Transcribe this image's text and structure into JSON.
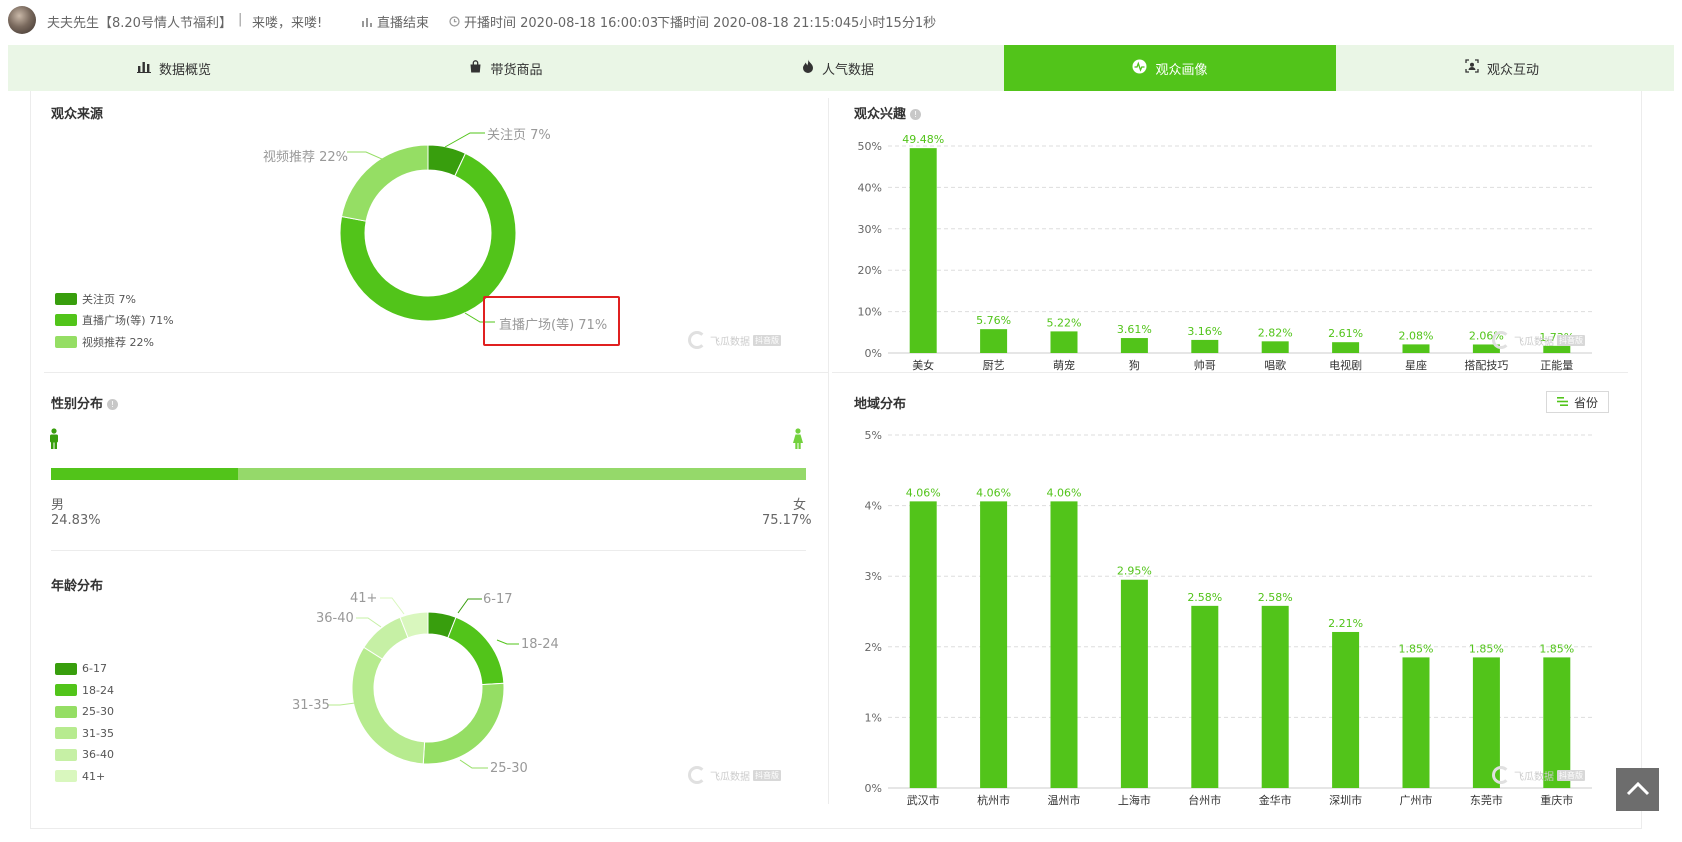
{
  "header": {
    "streamer": "夫夫先生【8.20号情人节福利】",
    "separator": "|",
    "slogan": "来喽，来喽!",
    "status": "直播结束",
    "start_time": "开播时间 2020-08-18 16:00:03",
    "end_time": "下播时间 2020-08-18 21:15:04",
    "duration": "5小时15分1秒"
  },
  "tabs": [
    {
      "label": "数据概览",
      "icon": "bar-chart-icon"
    },
    {
      "label": "带货商品",
      "icon": "shopping-bag-icon"
    },
    {
      "label": "人气数据",
      "icon": "flame-icon"
    },
    {
      "label": "观众画像",
      "icon": "activity-icon",
      "active": true
    },
    {
      "label": "观众互动",
      "icon": "scan-face-icon"
    }
  ],
  "audience_source": {
    "title": "观众来源",
    "legend": [
      "关注页 7%",
      "直播广场(等) 71%",
      "视频推荐 22%"
    ],
    "labels": {
      "follow": "关注页 7%",
      "plaza": "直播广场(等) 71%",
      "video": "视频推荐 22%"
    }
  },
  "audience_interest": {
    "title": "观众兴趣"
  },
  "gender": {
    "title": "性别分布",
    "male_label": "男",
    "male_value": "24.83%",
    "female_label": "女",
    "female_value": "75.17%",
    "male_fraction": 0.2483
  },
  "age": {
    "title": "年龄分布",
    "legend": [
      "6-17",
      "18-24",
      "25-30",
      "31-35",
      "36-40",
      "41+"
    ]
  },
  "region": {
    "title": "地域分布",
    "toggle_label": "省份"
  },
  "watermark": {
    "main": "飞瓜数据",
    "tag": "抖音版",
    "sub": "FEIGUA.CN"
  },
  "colors": {
    "accent": "#52c41a",
    "tab_bg": "#eaf6e6",
    "highlight": "#e02020",
    "donut": [
      "#389e0d",
      "#52c41a",
      "#95de64",
      "#b7eb8f",
      "#c6f0a5",
      "#d9f7be"
    ]
  },
  "chart_data": [
    {
      "type": "pie",
      "name": "观众来源",
      "categories": [
        "关注页",
        "直播广场(等)",
        "视频推荐"
      ],
      "values": [
        7,
        71,
        22
      ]
    },
    {
      "type": "bar",
      "title": "观众兴趣",
      "categories": [
        "美女",
        "厨艺",
        "萌宠",
        "狗",
        "帅哥",
        "唱歌",
        "电视剧",
        "星座",
        "搭配技巧",
        "正能量"
      ],
      "values": [
        49.48,
        5.76,
        5.22,
        3.61,
        3.16,
        2.82,
        2.61,
        2.08,
        2.06,
        1.73
      ],
      "data_labels": [
        "49.48%",
        "5.76%",
        "5.22%",
        "3.61%",
        "3.16%",
        "2.82%",
        "2.61%",
        "2.08%",
        "2.06%",
        "1.73%"
      ],
      "yticks": [
        "0%",
        "10%",
        "20%",
        "30%",
        "40%",
        "50%"
      ],
      "ylim": [
        0,
        50
      ],
      "grid": true
    },
    {
      "type": "pie",
      "name": "年龄分布",
      "categories": [
        "6-17",
        "18-24",
        "25-30",
        "31-35",
        "36-40",
        "41+"
      ],
      "values": [
        6,
        18,
        27,
        33,
        10,
        6
      ]
    },
    {
      "type": "bar",
      "title": "地域分布",
      "categories": [
        "武汉市",
        "杭州市",
        "温州市",
        "上海市",
        "台州市",
        "金华市",
        "深圳市",
        "广州市",
        "东莞市",
        "重庆市"
      ],
      "values": [
        4.06,
        4.06,
        4.06,
        2.95,
        2.58,
        2.58,
        2.21,
        1.85,
        1.85,
        1.85
      ],
      "data_labels": [
        "4.06%",
        "4.06%",
        "4.06%",
        "2.95%",
        "2.58%",
        "2.58%",
        "2.21%",
        "1.85%",
        "1.85%",
        "1.85%"
      ],
      "yticks": [
        "0%",
        "1%",
        "2%",
        "3%",
        "4%",
        "5%"
      ],
      "ylim": [
        0,
        5
      ],
      "grid": true
    }
  ]
}
